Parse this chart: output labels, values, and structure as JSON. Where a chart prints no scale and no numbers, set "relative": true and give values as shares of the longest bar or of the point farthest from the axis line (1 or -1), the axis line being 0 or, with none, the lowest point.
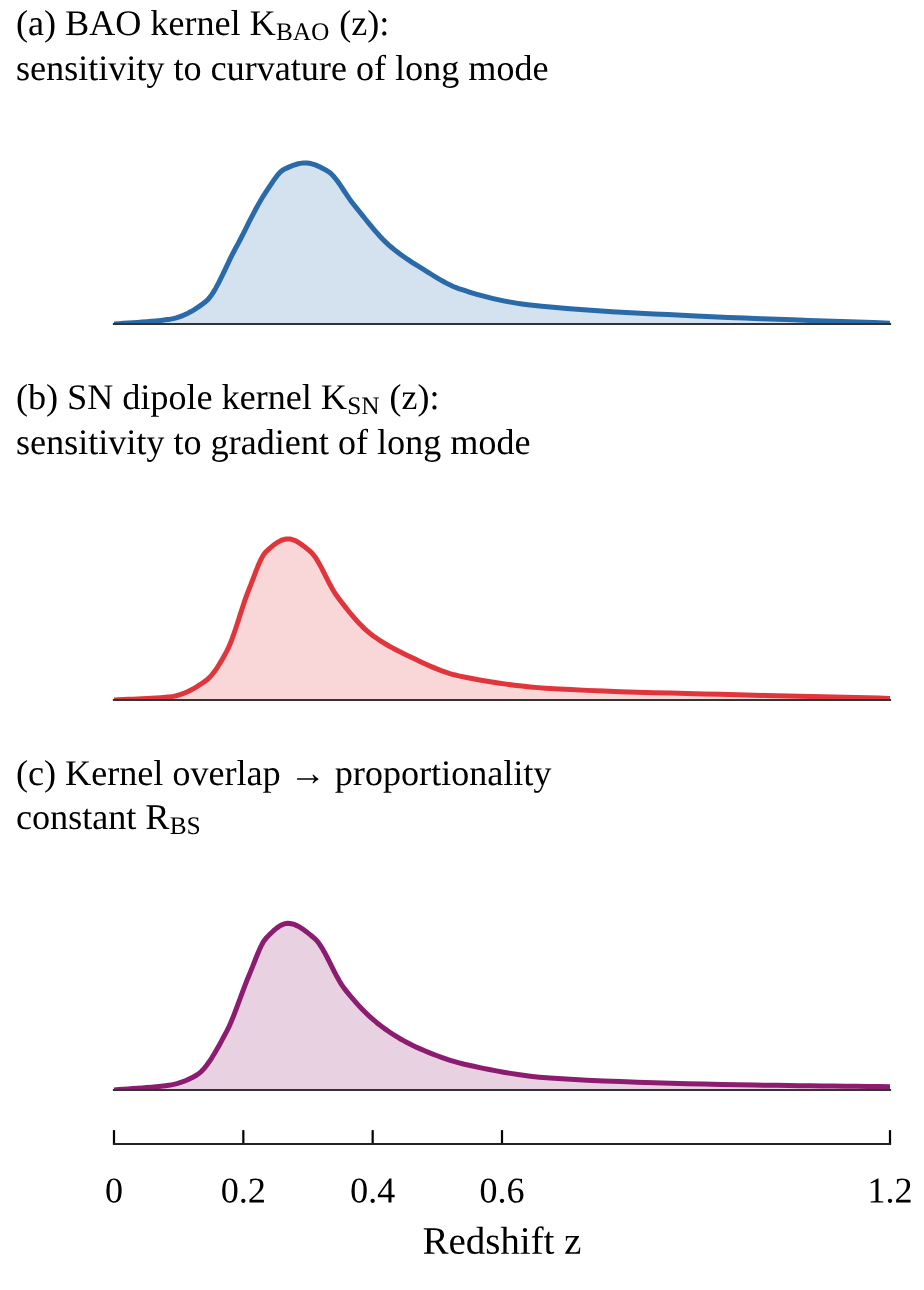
{
  "chart_data": [
    {
      "type": "area",
      "relative": true,
      "title": "(a) BAO kernel K$_{BAO}$ (z):\nsensitivity to curvature of long mode",
      "xlim": [
        0,
        1.2
      ],
      "tick_labels": false,
      "series": [
        {
          "color": "#2a6aa8",
          "x": [
            0,
            0.087,
            0.142,
            0.188,
            0.235,
            0.263,
            0.296,
            0.33,
            0.371,
            0.425,
            0.478,
            0.533,
            0.64,
            0.9,
            1.2
          ],
          "values": [
            0,
            0.03,
            0.14,
            0.47,
            0.82,
            0.96,
            1.0,
            0.95,
            0.74,
            0.49,
            0.34,
            0.22,
            0.12,
            0.05,
            0.005
          ]
        }
      ]
    },
    {
      "type": "area",
      "relative": true,
      "title": "(b) SN dipole kernel K$_{SN}$ (z):\nsensitivity to gradient of long mode",
      "xlim": [
        0,
        1.2
      ],
      "tick_labels": false,
      "series": [
        {
          "color": "#e0353a",
          "x": [
            0,
            0.087,
            0.142,
            0.174,
            0.209,
            0.235,
            0.269,
            0.304,
            0.344,
            0.397,
            0.452,
            0.533,
            0.68,
            0.99,
            1.2
          ],
          "values": [
            0,
            0.02,
            0.12,
            0.3,
            0.69,
            0.92,
            1.0,
            0.92,
            0.65,
            0.41,
            0.28,
            0.15,
            0.07,
            0.03,
            0.01
          ]
        }
      ]
    },
    {
      "type": "area",
      "relative": true,
      "title": "(c) Kernel overlap → proportionality\nconstant R$_{BS}$",
      "xlabel": "Redshift z",
      "xlim": [
        0,
        1.2
      ],
      "xticks": [
        0,
        0.2,
        0.4,
        0.6,
        1.2
      ],
      "tick_labels": "x",
      "series": [
        {
          "color": "#8c1c70",
          "x": [
            0,
            0.087,
            0.128,
            0.174,
            0.209,
            0.235,
            0.269,
            0.31,
            0.356,
            0.411,
            0.466,
            0.547,
            0.68,
            0.99,
            1.2
          ],
          "values": [
            0,
            0.03,
            0.09,
            0.35,
            0.69,
            0.91,
            1.0,
            0.91,
            0.61,
            0.39,
            0.26,
            0.15,
            0.07,
            0.03,
            0.02
          ]
        }
      ]
    }
  ]
}
